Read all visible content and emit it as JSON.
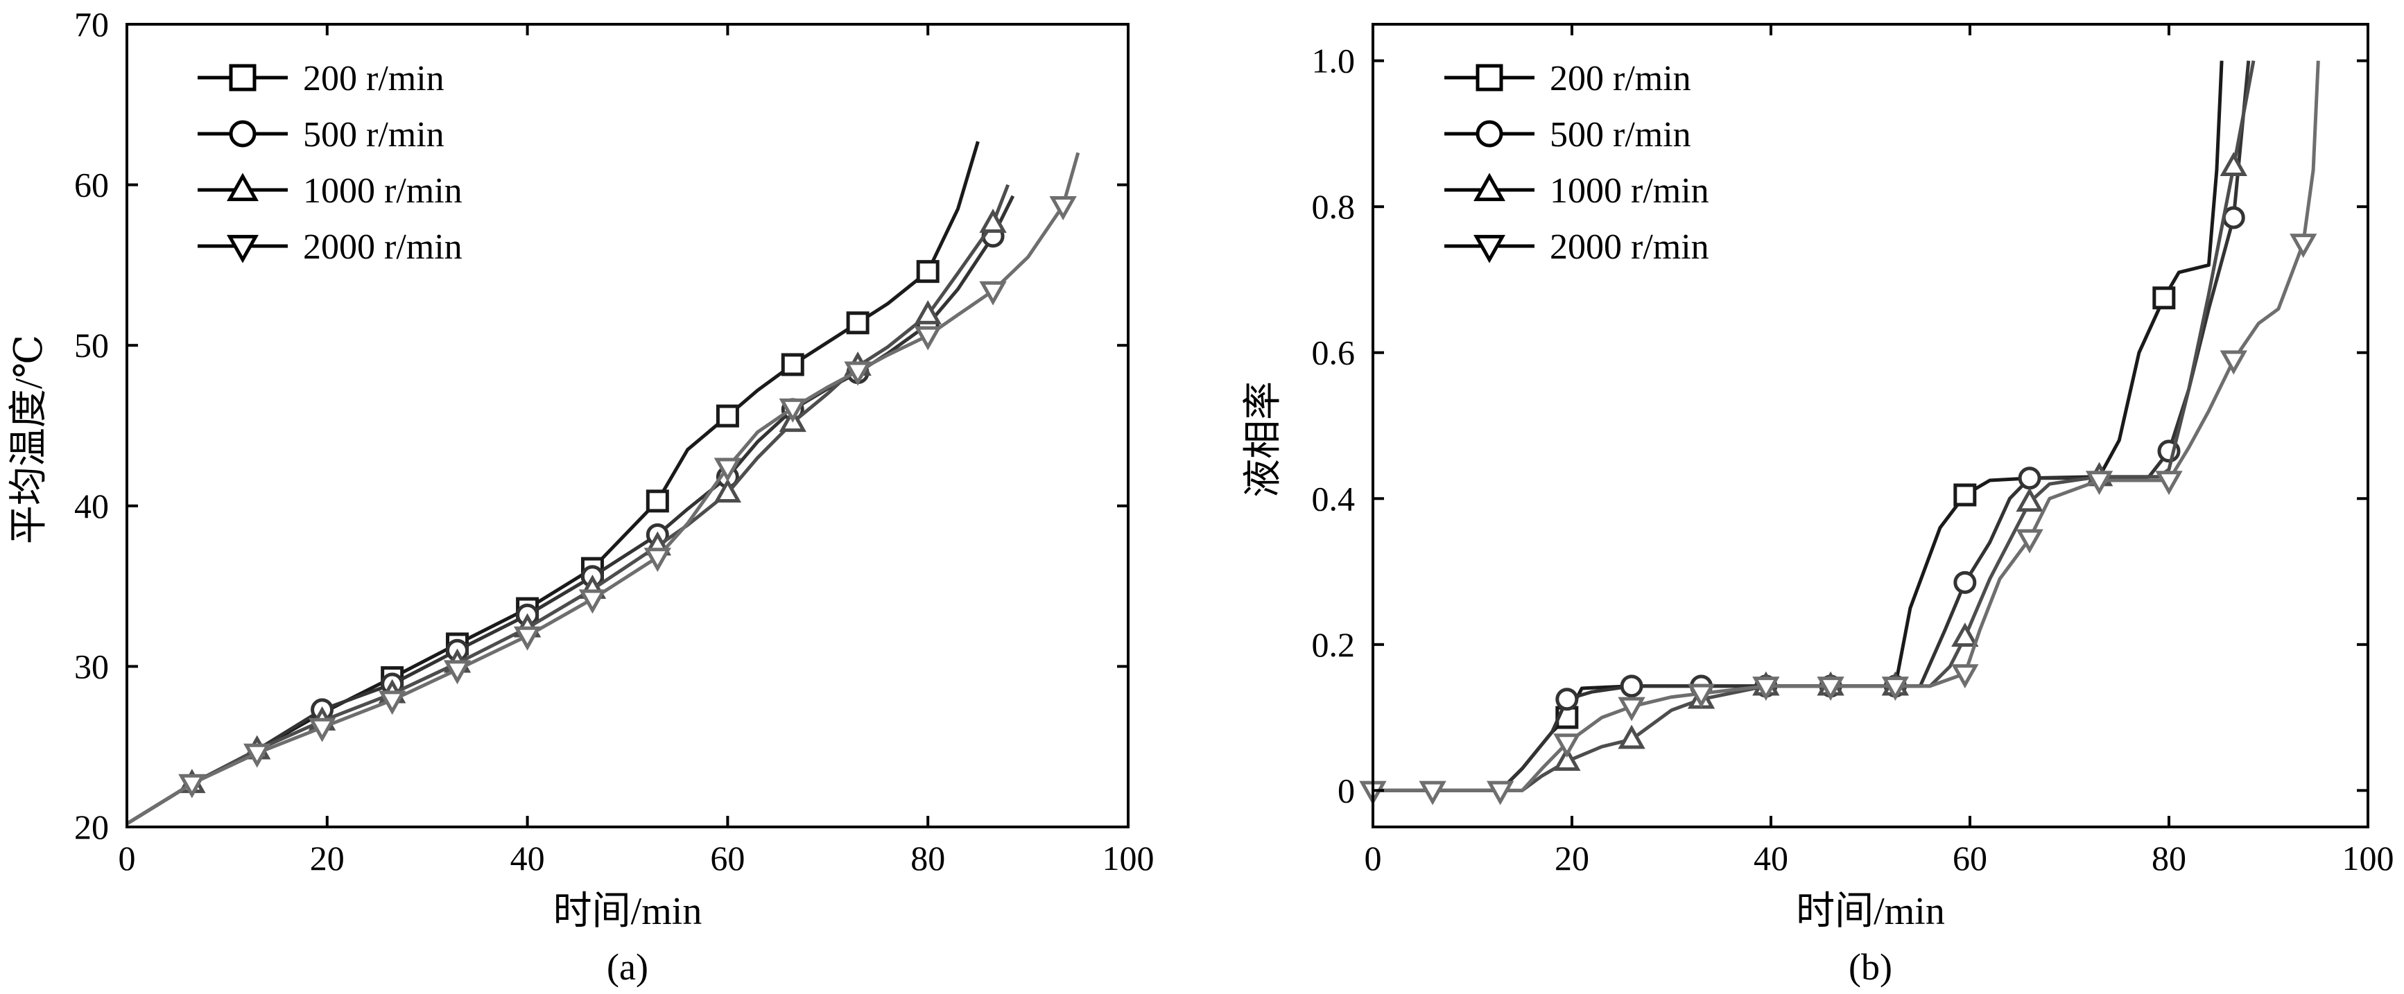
{
  "chart_data": [
    {
      "type": "line",
      "panel_label": "(a)",
      "xlabel": "时间/min",
      "ylabel": "平均温度/℃",
      "xlim": [
        0,
        100
      ],
      "ylim": [
        20,
        70
      ],
      "xticks": [
        0,
        20,
        40,
        60,
        80,
        100
      ],
      "yticks": [
        20,
        30,
        40,
        50,
        60,
        70
      ],
      "xtick_labels": [
        "0",
        "20",
        "40",
        "60",
        "80",
        "100"
      ],
      "ytick_labels": [
        "20",
        "30",
        "40",
        "50",
        "60",
        "70"
      ],
      "grid": false,
      "legend_position": "top-left",
      "series": [
        {
          "name": "200 r/min",
          "marker": "square",
          "color": "#1a1a1a",
          "x": [
            0,
            6.5,
            13,
            19.5,
            26.5,
            33,
            40,
            46.5,
            53,
            56,
            60,
            63,
            66.5,
            70,
            73,
            76,
            80,
            83,
            85
          ],
          "y": [
            20.2,
            22.7,
            24.8,
            27.1,
            29.3,
            31.4,
            33.6,
            36.1,
            40.3,
            43.5,
            45.6,
            47.2,
            48.8,
            50.2,
            51.4,
            52.6,
            54.6,
            58.5,
            62.7
          ],
          "markers_x": [
            26.5,
            33,
            40,
            46.5,
            53,
            60,
            66.5,
            73,
            80
          ],
          "markers_y": [
            29.3,
            31.4,
            33.6,
            36.1,
            40.3,
            45.6,
            48.8,
            51.4,
            54.6
          ]
        },
        {
          "name": "500 r/min",
          "marker": "circle",
          "color": "#333333",
          "x": [
            0,
            6.5,
            13,
            19.5,
            26.5,
            33,
            40,
            46.5,
            53,
            56,
            60,
            63,
            66.5,
            70,
            73,
            76,
            80,
            83,
            86.5,
            88.5
          ],
          "y": [
            20.2,
            22.7,
            24.8,
            27.3,
            28.9,
            31.0,
            33.2,
            35.6,
            38.2,
            39.8,
            41.8,
            44.0,
            46.0,
            47.3,
            48.3,
            49.5,
            51.3,
            53.5,
            56.8,
            59.3
          ],
          "markers_x": [
            19.5,
            26.5,
            33,
            40,
            46.5,
            53,
            60,
            66.5,
            73,
            80,
            86.5
          ],
          "markers_y": [
            27.3,
            28.9,
            31.0,
            33.2,
            35.6,
            38.2,
            41.8,
            46.0,
            48.3,
            51.3,
            56.8
          ]
        },
        {
          "name": "1000 r/min",
          "marker": "triangle-up",
          "color": "#4d4d4d",
          "x": [
            0,
            6.5,
            13,
            19.5,
            26.5,
            33,
            40,
            46.5,
            53,
            56,
            60,
            63,
            66.5,
            70,
            73,
            76,
            80,
            83,
            86.5,
            88
          ],
          "y": [
            20.2,
            22.7,
            24.8,
            26.6,
            28.3,
            30.2,
            32.4,
            34.8,
            37.5,
            38.8,
            40.8,
            43.0,
            45.2,
            47.0,
            48.7,
            49.9,
            51.9,
            54.5,
            57.6,
            60.0
          ],
          "markers_x": [
            6.5,
            13,
            19.5,
            26.5,
            33,
            40,
            46.5,
            53,
            60,
            66.5,
            73,
            80,
            86.5
          ],
          "markers_y": [
            22.7,
            24.8,
            26.6,
            28.3,
            30.2,
            32.4,
            34.8,
            37.5,
            40.8,
            45.2,
            48.7,
            51.9,
            57.6
          ]
        },
        {
          "name": "2000 r/min",
          "marker": "triangle-down",
          "color": "#6e6e6e",
          "x": [
            0,
            6.5,
            13,
            19.5,
            26.5,
            33,
            40,
            46.5,
            53,
            56,
            60,
            63,
            66.5,
            70,
            73,
            76,
            80,
            83,
            86.5,
            90,
            93.5,
            95
          ],
          "y": [
            20.2,
            22.7,
            24.6,
            26.2,
            27.9,
            29.8,
            31.9,
            34.2,
            36.8,
            38.9,
            42.4,
            44.6,
            46.1,
            47.4,
            48.4,
            49.4,
            50.6,
            51.9,
            53.4,
            55.5,
            58.7,
            62.0
          ],
          "markers_x": [
            6.5,
            13,
            19.5,
            26.5,
            33,
            40,
            46.5,
            53,
            60,
            66.5,
            73,
            80,
            86.5,
            93.5
          ],
          "markers_y": [
            22.7,
            24.6,
            26.2,
            27.9,
            29.8,
            31.9,
            34.2,
            36.8,
            42.4,
            46.1,
            48.4,
            50.6,
            53.4,
            58.7
          ]
        }
      ]
    },
    {
      "type": "line",
      "panel_label": "(b)",
      "xlabel": "时间/min",
      "ylabel": "液相率",
      "xlim": [
        0,
        100
      ],
      "ylim": [
        -0.05,
        1.05
      ],
      "xticks": [
        0,
        20,
        40,
        60,
        80,
        100
      ],
      "yticks": [
        0,
        0.2,
        0.4,
        0.6,
        0.8,
        1.0
      ],
      "xtick_labels": [
        "0",
        "20",
        "40",
        "60",
        "80",
        "100"
      ],
      "ytick_labels": [
        "0",
        "0.2",
        "0.4",
        "0.6",
        "0.8",
        "1.0"
      ],
      "grid": false,
      "legend_position": "top-left",
      "series": [
        {
          "name": "200 r/min",
          "marker": "square",
          "color": "#1a1a1a",
          "x": [
            0,
            6,
            12.8,
            15,
            18,
            19.5,
            21,
            26,
            33,
            39.5,
            46,
            52.5,
            54,
            57,
            59.5,
            62,
            66,
            73,
            75,
            77,
            79.5,
            81,
            84,
            84.8,
            85.3
          ],
          "y": [
            0,
            0,
            0,
            0.03,
            0.08,
            0.1,
            0.14,
            0.143,
            0.143,
            0.143,
            0.143,
            0.143,
            0.25,
            0.36,
            0.405,
            0.425,
            0.428,
            0.43,
            0.48,
            0.6,
            0.675,
            0.71,
            0.72,
            0.85,
            1.0
          ],
          "markers_x": [
            19.5,
            59.5,
            79.5
          ],
          "markers_y": [
            0.1,
            0.405,
            0.675
          ]
        },
        {
          "name": "500 r/min",
          "marker": "circle",
          "color": "#333333",
          "x": [
            0,
            6,
            12.8,
            15,
            18,
            19.5,
            22,
            26,
            33,
            39.5,
            46,
            52.5,
            55,
            57.5,
            59.5,
            62,
            64,
            66,
            73,
            76,
            78,
            80,
            82,
            84,
            86.5,
            88
          ],
          "y": [
            0,
            0,
            0,
            0.03,
            0.08,
            0.125,
            0.135,
            0.143,
            0.143,
            0.143,
            0.143,
            0.143,
            0.143,
            0.22,
            0.285,
            0.34,
            0.4,
            0.428,
            0.428,
            0.428,
            0.43,
            0.465,
            0.55,
            0.66,
            0.785,
            1.0
          ],
          "markers_x": [
            19.5,
            26,
            33,
            39.5,
            46,
            52.5,
            59.5,
            66,
            80,
            86.5
          ],
          "markers_y": [
            0.125,
            0.143,
            0.143,
            0.143,
            0.143,
            0.143,
            0.285,
            0.428,
            0.465,
            0.785
          ]
        },
        {
          "name": "1000 r/min",
          "marker": "triangle-up",
          "color": "#4d4d4d",
          "x": [
            0,
            6,
            12.8,
            15,
            17,
            19.5,
            23,
            26,
            30,
            33,
            39.5,
            46,
            52.5,
            56,
            58,
            59.5,
            62,
            66,
            68,
            73,
            76,
            79,
            80,
            82,
            84,
            86.5,
            88.5
          ],
          "y": [
            0,
            0,
            0,
            0.0,
            0.02,
            0.04,
            0.06,
            0.07,
            0.11,
            0.125,
            0.143,
            0.143,
            0.143,
            0.143,
            0.17,
            0.21,
            0.29,
            0.395,
            0.42,
            0.43,
            0.43,
            0.43,
            0.44,
            0.55,
            0.68,
            0.855,
            1.0
          ],
          "markers_x": [
            19.5,
            26,
            33,
            39.5,
            46,
            52.5,
            59.5,
            66,
            73,
            86.5
          ],
          "markers_y": [
            0.04,
            0.07,
            0.125,
            0.143,
            0.143,
            0.143,
            0.21,
            0.395,
            0.43,
            0.855
          ]
        },
        {
          "name": "2000 r/min",
          "marker": "triangle-down",
          "color": "#6e6e6e",
          "x": [
            0,
            6,
            12.8,
            15,
            17,
            19.5,
            23,
            26,
            30,
            33,
            39.5,
            46,
            52.5,
            56,
            59.5,
            61,
            63,
            66,
            68,
            73,
            76,
            80,
            82,
            84,
            86.5,
            89,
            91,
            93.5,
            94.5,
            95
          ],
          "y": [
            0,
            0,
            0,
            0.0,
            0.03,
            0.065,
            0.1,
            0.115,
            0.128,
            0.133,
            0.143,
            0.143,
            0.143,
            0.143,
            0.16,
            0.22,
            0.29,
            0.345,
            0.4,
            0.425,
            0.425,
            0.425,
            0.47,
            0.52,
            0.59,
            0.64,
            0.66,
            0.75,
            0.85,
            1.0
          ],
          "markers_x": [
            0,
            6,
            12.8,
            19.5,
            26,
            33,
            39.5,
            46,
            52.5,
            59.5,
            66,
            73,
            80,
            86.5,
            93.5
          ],
          "markers_y": [
            0,
            0,
            0,
            0.065,
            0.115,
            0.133,
            0.143,
            0.143,
            0.143,
            0.16,
            0.345,
            0.425,
            0.425,
            0.59,
            0.75
          ]
        }
      ]
    }
  ]
}
